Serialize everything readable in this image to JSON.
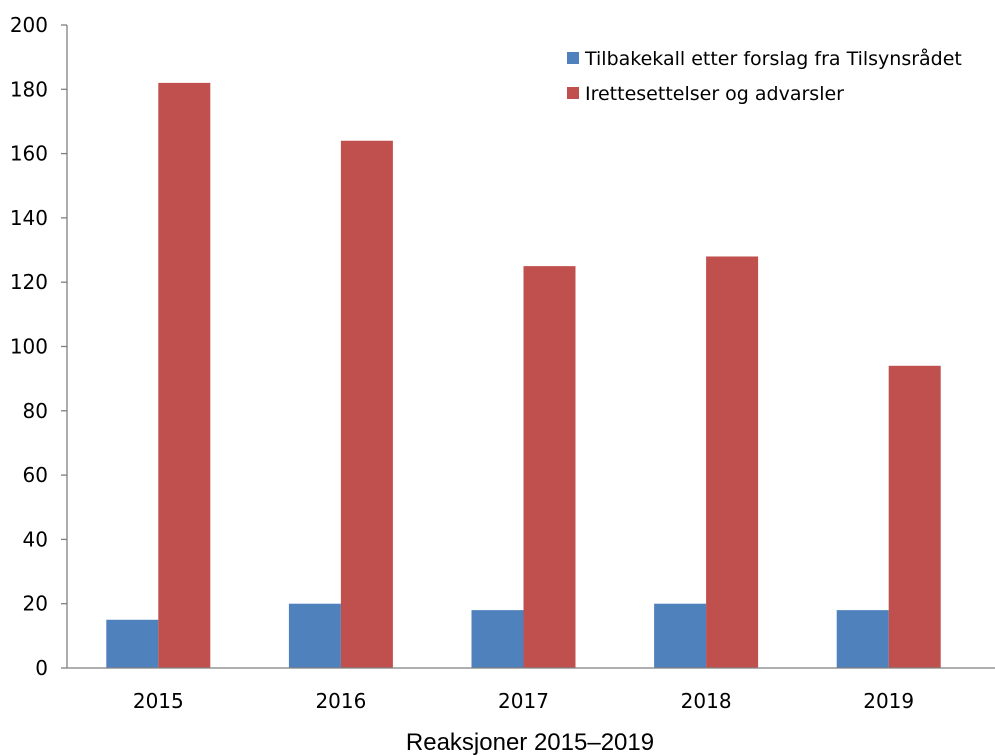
{
  "colors": {
    "series_1": "#4f81bd",
    "series_2": "#c0504d",
    "axis": "#7f7f7f"
  },
  "chart_data": {
    "type": "bar",
    "title": "",
    "caption": "Reaksjoner 2015–2019",
    "xlabel": "",
    "ylabel": "",
    "categories": [
      "2015",
      "2016",
      "2017",
      "2018",
      "2019"
    ],
    "series": [
      {
        "name": "Tilbakekall etter forslag fra Tilsynsrådet",
        "values": [
          15,
          20,
          18,
          20,
          18
        ]
      },
      {
        "name": "Irettesettelser og advarsler",
        "values": [
          182,
          164,
          125,
          128,
          94
        ]
      }
    ],
    "ylim": [
      0,
      200
    ],
    "yticks": [
      0,
      20,
      40,
      60,
      80,
      100,
      120,
      140,
      160,
      180,
      200
    ],
    "grid": false,
    "legend_position": "top-right"
  }
}
